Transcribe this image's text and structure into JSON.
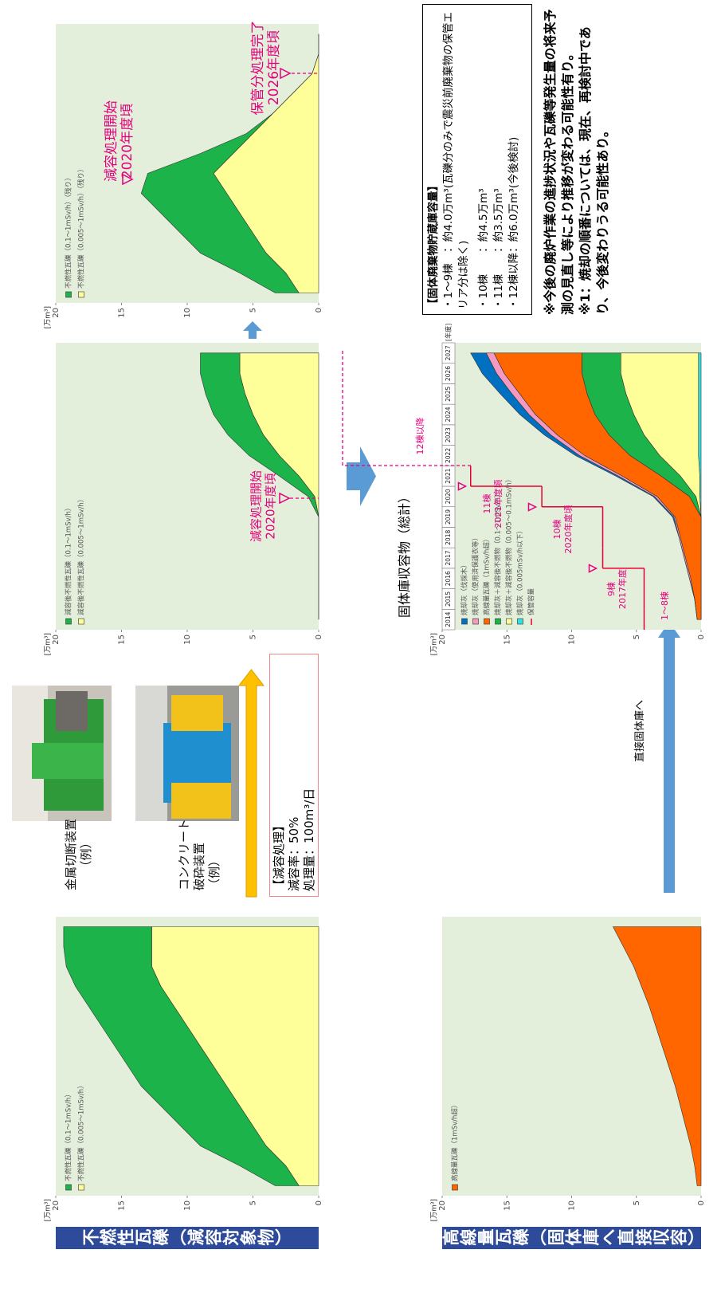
{
  "sections": [
    {
      "title": "不燃性瓦礫（減容対象物）"
    },
    {
      "title": "高線量瓦礫（固体庫へ直接収容）"
    }
  ],
  "equipment": {
    "items": [
      {
        "label": [
          "金属切断装置",
          "（例）"
        ]
      },
      {
        "label": [
          "コンクリート",
          "破砕装置（例）"
        ]
      }
    ],
    "box": [
      "【減容処理】",
      "減容率：50%",
      "処理量：100m³/日"
    ]
  },
  "direct_label": "直接固体庫へ",
  "total_title": "固体庫収容物（総計）",
  "storage": {
    "title": "【固体廃棄物貯蔵庫容量】",
    "lines": [
      "・1～9棟　：約4.0万m³(瓦礫分のみで震災前廃棄物の保管エリア分は除く)",
      "・10棟　　：約4.5万m³",
      "・11棟　　：約3.5万m³",
      "・12棟以降：約6.0万m³(今後検討)"
    ]
  },
  "notes": [
    "※今後の廃炉作業の進捗状況や瓦礫等発生量の将来予測の見直し等により推移が変わる可能性有り。",
    "※1：焼却の順番については、現在、再検討中であり、今後変わりうる可能性あり。"
  ],
  "chart_data": [
    {
      "type": "area",
      "y_label": "[万m³]",
      "ylim": [
        0,
        20
      ],
      "yticks": [
        0,
        5,
        10,
        15,
        20
      ],
      "categories": [
        null,
        null,
        null,
        null,
        null,
        null,
        null,
        null,
        null,
        null,
        null,
        null,
        null,
        null
      ],
      "series": [
        {
          "name": "不燃性瓦礫（0.1～1mSv/h）",
          "color": "#1db34b",
          "values": [
            1.8,
            3.5,
            5,
            5.5,
            6,
            6.5,
            6.5,
            6.5,
            6.5,
            6.5,
            6.5,
            6.5,
            6.7,
            6.7
          ]
        },
        {
          "name": "不燃性瓦礫（0.005～1mSv/h）",
          "color": "#ffff99",
          "values": [
            1.5,
            2.5,
            4,
            5,
            6,
            7,
            8,
            9,
            10,
            11,
            12,
            12.7,
            12.7,
            12.7
          ]
        }
      ],
      "annotations": []
    },
    {
      "type": "area",
      "y_label": "[万m³]",
      "ylim": [
        0,
        20
      ],
      "yticks": [
        0,
        5,
        10,
        15,
        20
      ],
      "categories": [
        null,
        null,
        null,
        null,
        null,
        null,
        null,
        null,
        null,
        null,
        null,
        null,
        null,
        null
      ],
      "series": [
        {
          "name": "減容後不燃性瓦礫（0.1～1mSv/h）",
          "color": "#1db34b",
          "values": [
            0,
            0,
            0,
            0,
            0,
            0,
            0.5,
            1.5,
            2.3,
            2.7,
            3,
            3,
            3,
            3
          ]
        },
        {
          "name": "減容後不燃性瓦礫（0.005～1mSv/h）",
          "color": "#ffff99",
          "values": [
            0,
            0,
            0,
            0,
            0,
            0,
            0.3,
            1.5,
            3,
            4.2,
            5,
            5.6,
            6,
            6
          ]
        }
      ],
      "annotations": [
        [
          "減容処理開始",
          "2020年度頃"
        ]
      ]
    },
    {
      "type": "area",
      "y_label": "[万m³]",
      "ylim": [
        0,
        20
      ],
      "yticks": [
        0,
        5,
        10,
        15,
        20
      ],
      "categories": [
        null,
        null,
        null,
        null,
        null,
        null,
        null,
        null,
        null,
        null,
        null,
        null,
        null,
        null
      ],
      "series": [
        {
          "name": "不燃性瓦礫（0.1～1mSv/h）（残り）",
          "color": "#1db34b",
          "values": [
            1.8,
            3.5,
            5,
            5.5,
            6,
            6.5,
            5,
            2.5,
            0.5,
            0,
            0,
            0,
            0,
            0
          ]
        },
        {
          "name": "不燃性瓦礫（0.005～1mSv/h）（残り）",
          "color": "#ffff99",
          "values": [
            1.5,
            2.5,
            4,
            5,
            6,
            7,
            8,
            6.5,
            5,
            3.5,
            2,
            0.5,
            0,
            0
          ]
        }
      ],
      "annotations": [
        [
          "減容処理開始",
          "2020年度頃"
        ],
        [
          "保管分処理完了",
          "2026年度頃"
        ]
      ]
    },
    {
      "type": "area",
      "y_label": "[万m³]",
      "ylim": [
        0,
        20
      ],
      "yticks": [
        0,
        5,
        10,
        15,
        20
      ],
      "categories": [
        null,
        null,
        null,
        null,
        null,
        null,
        null,
        null,
        null,
        null,
        null,
        null,
        null,
        null
      ],
      "series": [
        {
          "name": "高線量瓦礫（1mSv/h超）",
          "color": "#ff6600",
          "values": [
            0.3,
            0.5,
            0.8,
            1.2,
            1.6,
            2,
            2.5,
            3,
            3.5,
            4,
            4.6,
            5.2,
            6,
            6.8
          ]
        }
      ],
      "annotations": []
    },
    {
      "type": "area",
      "y_label": "[万m³]",
      "x_label": "[年度]",
      "ylim": [
        0,
        20
      ],
      "yticks": [
        0,
        5,
        10,
        15,
        20
      ],
      "categories": [
        "2014",
        "2015",
        "2016",
        "2017",
        "2018",
        "2019",
        "2020",
        "2021",
        "2022",
        "2023",
        "2024",
        "2025",
        "2026",
        "2027"
      ],
      "series": [
        {
          "name": "焼却灰（伐採木）",
          "color": "#0070c0",
          "values": [
            0,
            0,
            0,
            0,
            0,
            0.1,
            0.1,
            0.2,
            0.3,
            0.5,
            0.7,
            0.9,
            1.1,
            1.2
          ]
        },
        {
          "name": "焼却灰（使用済保護衣等）",
          "color": "#f49ac1",
          "values": [
            0,
            0,
            0.1,
            0.1,
            0.1,
            0.1,
            0.2,
            0.3,
            0.4,
            0.5,
            0.5,
            0.6,
            0.6,
            0.6
          ]
        },
        {
          "name": "高線量瓦礫（1mSv/h超）",
          "color": "#ff6600",
          "values": [
            0.3,
            0.5,
            0.8,
            1.2,
            1.6,
            2,
            2.5,
            3,
            3.5,
            4,
            4.6,
            5.2,
            6,
            6.8
          ]
        },
        {
          "name": "焼却灰＋減容後不燃物（0.1～1mSv/h）",
          "color": "#1db34b",
          "values": [
            0,
            0,
            0,
            0,
            0,
            0,
            0.5,
            1.5,
            2.3,
            2.7,
            3,
            3,
            3,
            3
          ]
        },
        {
          "name": "焼却灰＋減容後不燃物（0.005～0.1mSv/h）",
          "color": "#ffff99",
          "values": [
            0,
            0,
            0,
            0,
            0,
            0,
            0.3,
            1.5,
            3,
            4.2,
            5,
            5.6,
            6,
            6
          ]
        },
        {
          "name": "焼却灰（0.005mSv/h以下）",
          "color": "#33e0e0",
          "values": [
            0,
            0,
            0,
            0,
            0,
            0,
            0.1,
            0.1,
            0.2,
            0.2,
            0.2,
            0.2,
            0.2,
            0.2
          ]
        },
        {
          "name": "保管容量",
          "color": "#e60033",
          "style": "step",
          "values": [
            4.4,
            4.4,
            4.4,
            7.6,
            7.6,
            7.6,
            12.3,
            17.8,
            null,
            null,
            null,
            null,
            null,
            null
          ]
        }
      ],
      "annotations": [
        [
          "1～8棟"
        ],
        [
          "9棟",
          "2017年度"
        ],
        [
          "10棟",
          "2020年度頃"
        ],
        [
          "11棟",
          "2021年度頃"
        ],
        [
          "12棟以降"
        ]
      ]
    }
  ]
}
